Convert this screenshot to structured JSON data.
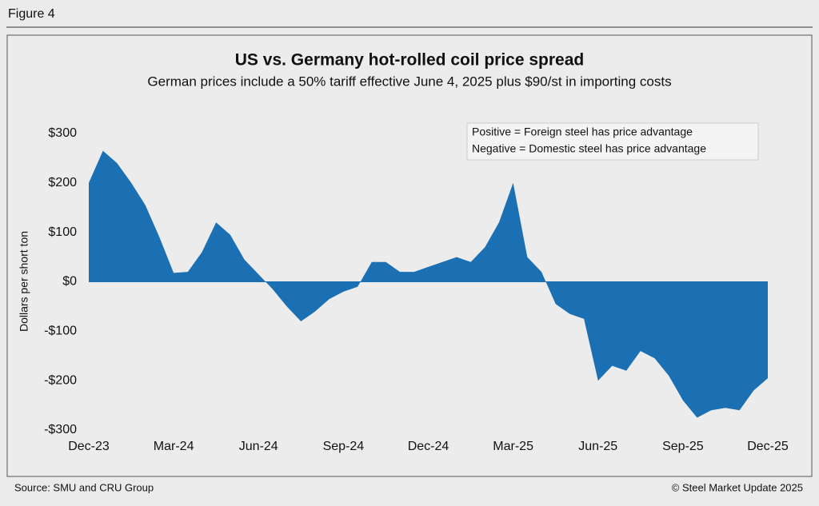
{
  "figure": "Figure 4",
  "source": "Source: SMU and CRU Group",
  "copyright": "© Steel Market Update 2025",
  "chart_data": {
    "type": "area",
    "title": "US vs. Germany hot-rolled coil price spread",
    "subtitle": "German prices include a 50% tariff effective June 4, 2025 plus $90/st in importing costs",
    "y_label": "Dollars per short ton",
    "annotations": [
      "Positive = Foreign steel has price advantage",
      "Negative = Domestic steel has price advantage"
    ],
    "categories": [
      "Dec-23",
      null,
      null,
      null,
      null,
      null,
      "Mar-24",
      null,
      null,
      null,
      null,
      null,
      "Jun-24",
      null,
      null,
      null,
      null,
      null,
      "Sep-24",
      null,
      null,
      null,
      null,
      null,
      "Dec-24",
      null,
      null,
      null,
      null,
      null,
      "Mar-25",
      null,
      null,
      null,
      null,
      null,
      "Jun-25",
      null,
      null,
      null,
      null,
      null,
      "Sep-25",
      null,
      null,
      null,
      null,
      null,
      "Dec-25"
    ],
    "values": [
      200,
      265,
      240,
      200,
      155,
      90,
      18,
      20,
      60,
      120,
      95,
      45,
      15,
      -15,
      -50,
      -80,
      -60,
      -35,
      -20,
      -10,
      40,
      40,
      20,
      20,
      30,
      40,
      50,
      40,
      70,
      120,
      200,
      50,
      20,
      -45,
      -65,
      -75,
      -200,
      -170,
      -180,
      -140,
      -155,
      -190,
      -240,
      -275,
      -260,
      -255,
      -260,
      -220,
      -195
    ],
    "color": "#1b6fb3",
    "ylim": [
      -300,
      300
    ],
    "yticks": [
      {
        "value": 300,
        "label": "$300"
      },
      {
        "value": 200,
        "label": "$200"
      },
      {
        "value": 100,
        "label": "$100"
      },
      {
        "value": 0,
        "label": "$0"
      },
      {
        "value": -100,
        "label": "-$100"
      },
      {
        "value": -200,
        "label": "-$200"
      },
      {
        "value": -300,
        "label": "-$300"
      }
    ]
  }
}
